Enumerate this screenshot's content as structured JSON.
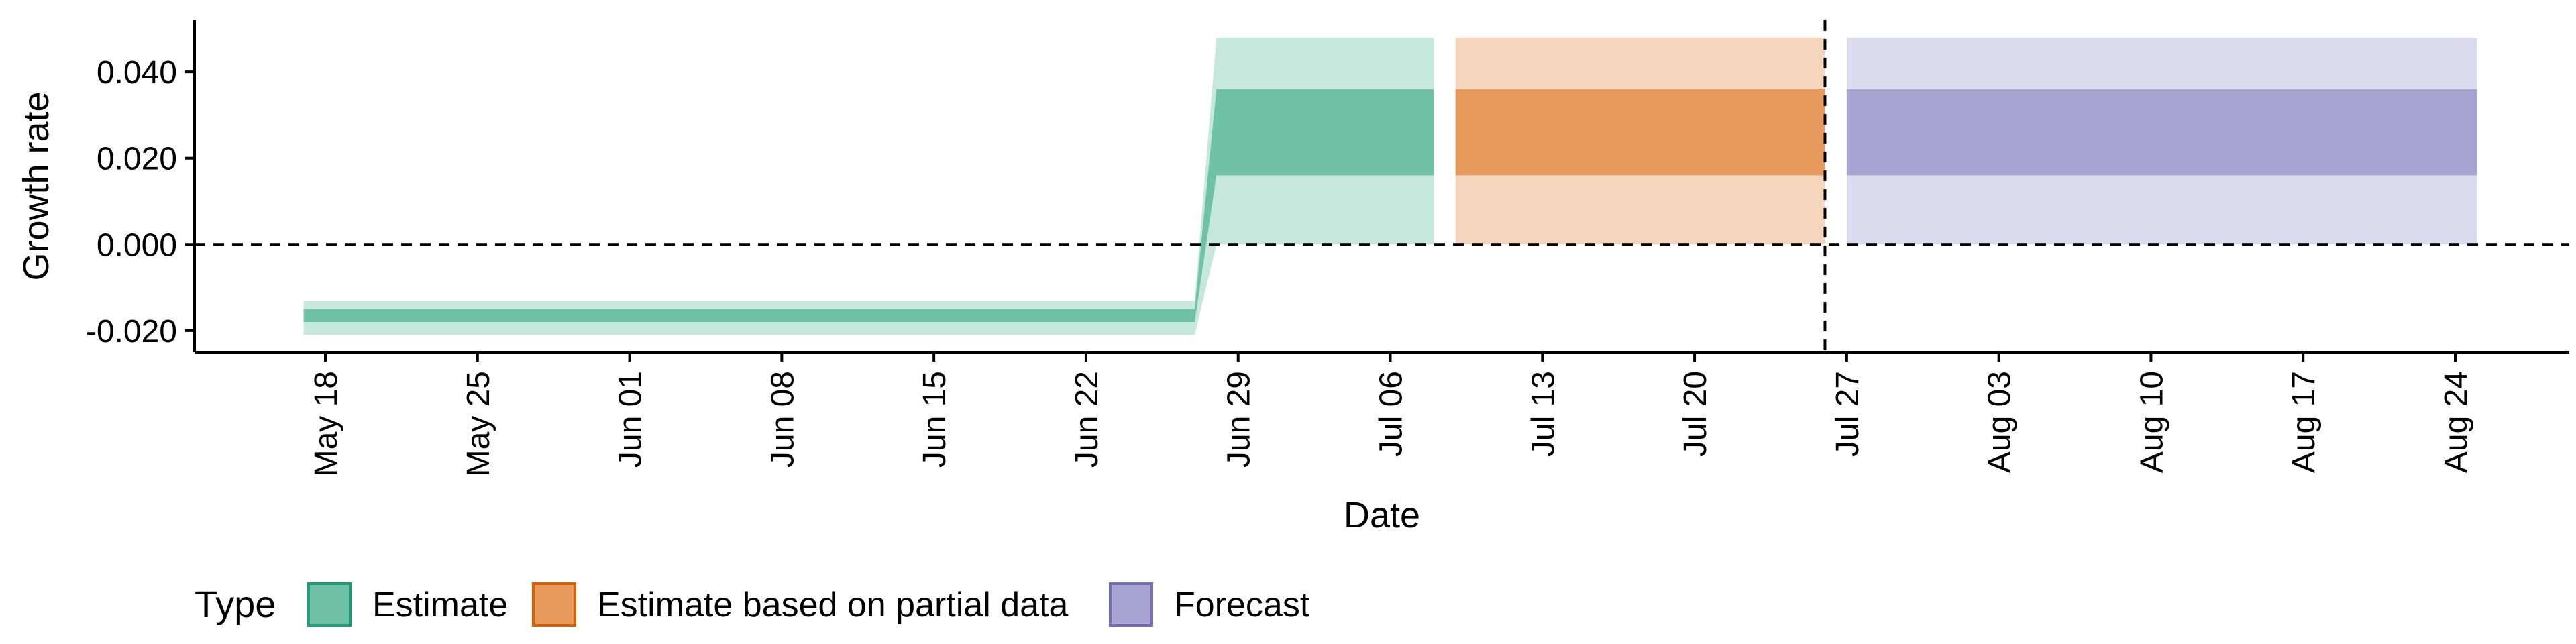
{
  "chart_data": {
    "type": "area",
    "title": "",
    "xlabel": "Date",
    "ylabel": "Growth rate",
    "ylim": [
      -0.025,
      0.052
    ],
    "x_ticks": [
      "May 18",
      "May 25",
      "Jun 01",
      "Jun 08",
      "Jun 15",
      "Jun 22",
      "Jun 29",
      "Jul 06",
      "Jul 13",
      "Jul 20",
      "Jul 27",
      "Aug 03",
      "Aug 10",
      "Aug 17",
      "Aug 24"
    ],
    "y_ticks": [
      "-0.020",
      "0.000",
      "0.020",
      "0.040"
    ],
    "y_tick_values": [
      -0.02,
      0.0,
      0.02,
      0.04
    ],
    "grid": false,
    "hline": 0.0,
    "vline_date": "Jul 26",
    "legend": {
      "title": "Type",
      "position": "bottom-left",
      "entries": [
        "Estimate",
        "Estimate based on partial data",
        "Forecast"
      ]
    },
    "series": [
      {
        "name": "Estimate",
        "color": "#1b9e77",
        "fill_inner": "#6fc2a6",
        "fill_outer": "#c6e7dc",
        "x": [
          "May 17",
          "Jun 27",
          "Jun 28",
          "Jul 08"
        ],
        "lower90": [
          -0.021,
          -0.021,
          0.0,
          0.0
        ],
        "lower50": [
          -0.018,
          -0.018,
          0.016,
          0.016
        ],
        "upper50": [
          -0.015,
          -0.015,
          0.036,
          0.036
        ],
        "upper90": [
          -0.013,
          -0.013,
          0.048,
          0.048
        ]
      },
      {
        "name": "Estimate based on partial data",
        "color": "#d95f02",
        "fill_inner": "#e79a5e",
        "fill_outer": "#f5d6bd",
        "x": [
          "Jul 09",
          "Jul 26"
        ],
        "lower90": [
          0.0,
          0.0
        ],
        "lower50": [
          0.016,
          0.016
        ],
        "upper50": [
          0.036,
          0.036
        ],
        "upper90": [
          0.048,
          0.048
        ]
      },
      {
        "name": "Forecast",
        "color": "#7570b3",
        "fill_inner": "#a9a5d2",
        "fill_outer": "#dcdbed",
        "x": [
          "Jul 27",
          "Aug 25"
        ],
        "lower90": [
          0.0,
          0.0
        ],
        "lower50": [
          0.016,
          0.016
        ],
        "upper50": [
          0.036,
          0.036
        ],
        "upper90": [
          0.048,
          0.048
        ]
      }
    ]
  }
}
